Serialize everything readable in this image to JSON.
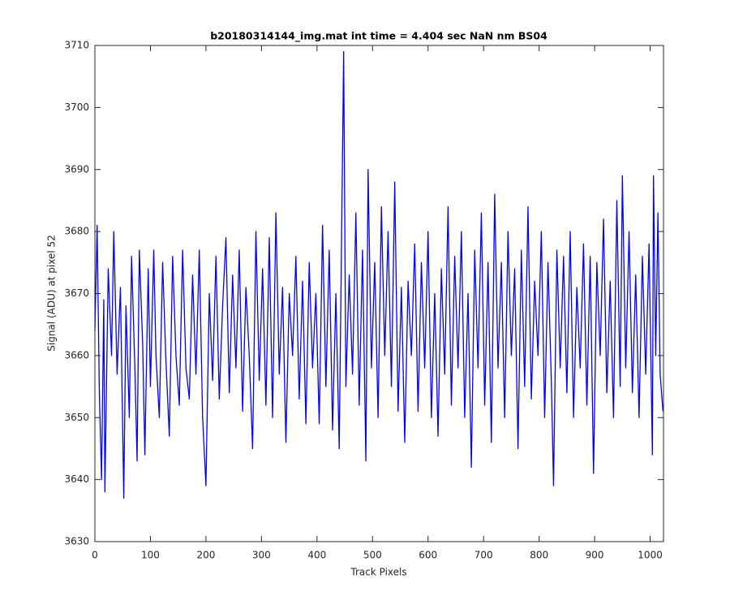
{
  "chart_data": {
    "type": "line",
    "title": "b20180314144_img.mat int time = 4.404 sec  NaN nm BS04",
    "x_label": "Track Pixels",
    "y_label": "Signal (ADU) at pixel 52",
    "xlim": [
      0,
      1024
    ],
    "ylim": [
      3630,
      3710
    ],
    "xticks": [
      0,
      100,
      200,
      300,
      400,
      500,
      600,
      700,
      800,
      900,
      1000
    ],
    "yticks": [
      3630,
      3640,
      3650,
      3660,
      3670,
      3680,
      3690,
      3700,
      3710
    ],
    "grid": false,
    "series": [
      {
        "color": "#0000ff",
        "x": [
          0,
          4,
          8,
          12,
          16,
          18,
          24,
          30,
          34,
          40,
          46,
          52,
          56,
          62,
          66,
          72,
          76,
          80,
          86,
          90,
          96,
          100,
          106,
          110,
          116,
          122,
          128,
          134,
          140,
          146,
          152,
          158,
          164,
          170,
          176,
          182,
          188,
          194,
          200,
          206,
          212,
          218,
          224,
          230,
          236,
          242,
          248,
          254,
          260,
          266,
          272,
          278,
          284,
          290,
          296,
          302,
          308,
          314,
          320,
          326,
          332,
          338,
          344,
          350,
          356,
          362,
          368,
          374,
          380,
          386,
          392,
          398,
          404,
          410,
          416,
          422,
          428,
          434,
          440,
          448,
          452,
          458,
          464,
          470,
          476,
          482,
          488,
          492,
          498,
          504,
          510,
          516,
          522,
          528,
          534,
          540,
          546,
          552,
          558,
          564,
          570,
          576,
          582,
          588,
          594,
          600,
          606,
          612,
          618,
          624,
          630,
          636,
          642,
          648,
          654,
          660,
          666,
          672,
          678,
          684,
          690,
          696,
          702,
          708,
          714,
          720,
          726,
          732,
          738,
          744,
          750,
          756,
          762,
          768,
          774,
          780,
          786,
          792,
          798,
          804,
          810,
          816,
          822,
          826,
          832,
          838,
          844,
          850,
          856,
          862,
          868,
          874,
          880,
          886,
          892,
          898,
          904,
          910,
          916,
          922,
          928,
          934,
          940,
          946,
          950,
          956,
          962,
          968,
          974,
          980,
          986,
          992,
          998,
          1004,
          1006,
          1010,
          1014,
          1018,
          1023
        ],
        "values": [
          3664,
          3681,
          3654,
          3640,
          3669,
          3638,
          3674,
          3660,
          3680,
          3657,
          3671,
          3637,
          3668,
          3650,
          3676,
          3658,
          3643,
          3677,
          3662,
          3644,
          3674,
          3655,
          3677,
          3660,
          3650,
          3675,
          3659,
          3647,
          3676,
          3660,
          3652,
          3677,
          3658,
          3653,
          3673,
          3657,
          3677,
          3650,
          3639,
          3670,
          3656,
          3676,
          3653,
          3668,
          3679,
          3654,
          3673,
          3658,
          3677,
          3651,
          3671,
          3660,
          3645,
          3680,
          3656,
          3674,
          3652,
          3679,
          3650,
          3683,
          3657,
          3671,
          3646,
          3670,
          3660,
          3676,
          3653,
          3672,
          3649,
          3675,
          3658,
          3670,
          3649,
          3681,
          3655,
          3677,
          3648,
          3670,
          3645,
          3709,
          3655,
          3673,
          3657,
          3683,
          3652,
          3677,
          3643,
          3690,
          3658,
          3675,
          3650,
          3684,
          3660,
          3680,
          3655,
          3688,
          3651,
          3671,
          3646,
          3672,
          3660,
          3678,
          3651,
          3675,
          3658,
          3680,
          3650,
          3670,
          3647,
          3674,
          3657,
          3684,
          3652,
          3676,
          3658,
          3680,
          3650,
          3670,
          3642,
          3677,
          3658,
          3683,
          3652,
          3675,
          3646,
          3686,
          3658,
          3675,
          3650,
          3680,
          3660,
          3674,
          3645,
          3677,
          3655,
          3684,
          3653,
          3672,
          3660,
          3680,
          3650,
          3675,
          3656,
          3639,
          3677,
          3658,
          3676,
          3654,
          3680,
          3650,
          3671,
          3658,
          3678,
          3652,
          3676,
          3641,
          3675,
          3660,
          3682,
          3654,
          3672,
          3650,
          3685,
          3655,
          3689,
          3658,
          3680,
          3654,
          3673,
          3650,
          3676,
          3657,
          3678,
          3644,
          3689,
          3660,
          3683,
          3657,
          3651
        ]
      }
    ]
  }
}
